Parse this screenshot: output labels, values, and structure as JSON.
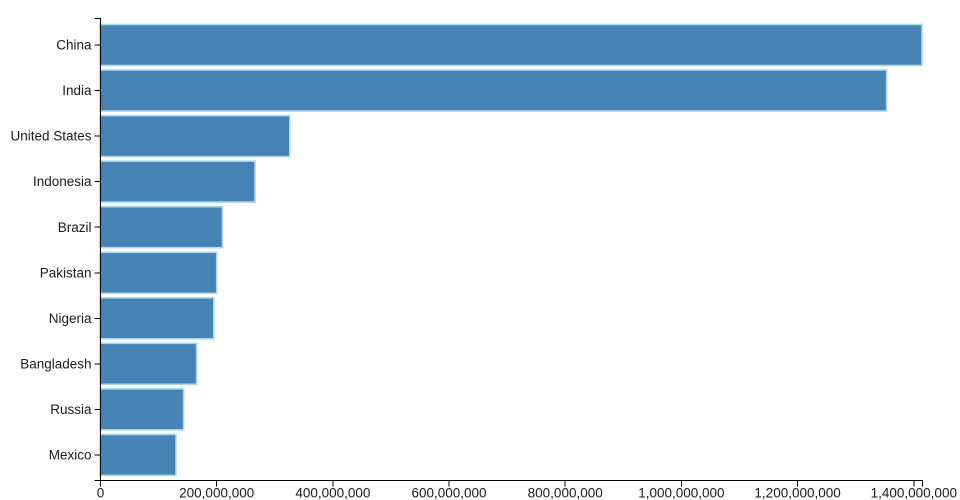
{
  "chart_data": {
    "type": "bar",
    "orientation": "horizontal",
    "categories": [
      "China",
      "India",
      "United States",
      "Indonesia",
      "Brazil",
      "Pakistan",
      "Nigeria",
      "Bangladesh",
      "Russia",
      "Mexico"
    ],
    "values": [
      1415045928,
      1354051854,
      326766748,
      266794980,
      210867954,
      200813818,
      195875237,
      166368149,
      143964709,
      130759074
    ],
    "series_name": "Population",
    "xlabel": "",
    "ylabel": "",
    "xlim": [
      0,
      1415045928
    ],
    "x_ticks": [
      0,
      200000000,
      400000000,
      600000000,
      800000000,
      1000000000,
      1200000000,
      1400000000
    ],
    "x_tick_labels": [
      "0",
      "200,000,000",
      "400,000,000",
      "600,000,000",
      "800,000,000",
      "1,000,000,000",
      "1,200,000,000",
      "1,400,000,000"
    ],
    "grid": false,
    "legend": false,
    "bar_color": "#4682b4",
    "bar_stroke_color": "#add8e6",
    "axis_color": "#000000",
    "text_color": "#1a1a1a"
  }
}
